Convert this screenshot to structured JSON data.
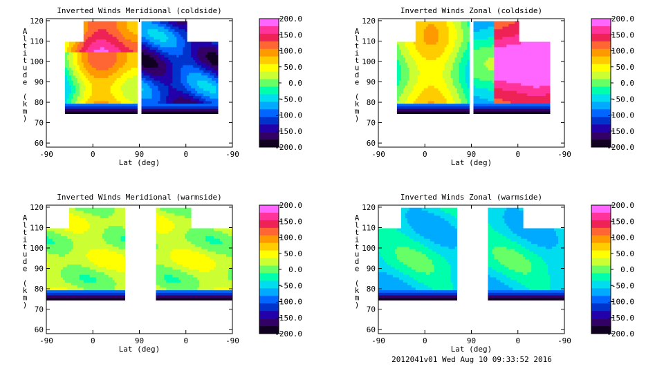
{
  "footer": "2012041v01 Wed Aug 10 09:33:52 2016",
  "colorbar": {
    "labels": [
      "200.0",
      "150.0",
      "100.0",
      "50.0",
      "0.0",
      "-50.0",
      "-100.0",
      "-150.0",
      "-200.0"
    ],
    "colors": [
      "#ff66ff",
      "#ff3399",
      "#ee2255",
      "#ff6633",
      "#ff9900",
      "#ffcc00",
      "#ffff00",
      "#ccff33",
      "#66ff66",
      "#00ffaa",
      "#00ddee",
      "#00aaff",
      "#0066ff",
      "#0033cc",
      "#2200aa",
      "#330066",
      "#110022"
    ]
  },
  "chart_data": [
    {
      "type": "heatmap",
      "title": "Inverted Winds Meridional (coldside)",
      "xlabel": "Lat (deg)",
      "ylabel": "Altitude (km)",
      "x_ticks": [
        "-90",
        "0",
        "90",
        "0",
        "-90"
      ],
      "y_ticks": [
        60,
        70,
        80,
        90,
        100,
        110,
        120
      ],
      "ylim": [
        58,
        121
      ],
      "zlim": [
        -200,
        200
      ]
    },
    {
      "type": "heatmap",
      "title": "Inverted Winds Zonal (coldside)",
      "xlabel": "Lat (deg)",
      "ylabel": "Altitude (km)",
      "x_ticks": [
        "-90",
        "0",
        "90",
        "0",
        "-90"
      ],
      "y_ticks": [
        60,
        70,
        80,
        90,
        100,
        110,
        120
      ],
      "ylim": [
        58,
        121
      ],
      "zlim": [
        -200,
        200
      ]
    },
    {
      "type": "heatmap",
      "title": "Inverted Winds Meridional (warmside)",
      "xlabel": "Lat (deg)",
      "ylabel": "Altitude (km)",
      "x_ticks": [
        "-90",
        "0",
        "90",
        "0",
        "-90"
      ],
      "y_ticks": [
        60,
        70,
        80,
        90,
        100,
        110,
        120
      ],
      "ylim": [
        58,
        121
      ],
      "zlim": [
        -200,
        200
      ]
    },
    {
      "type": "heatmap",
      "title": "Inverted Winds Zonal (warmside)",
      "xlabel": "Lat (deg)",
      "ylabel": "Altitude (km)",
      "x_ticks": [
        "-90",
        "0",
        "90",
        "0",
        "-90"
      ],
      "y_ticks": [
        60,
        70,
        80,
        90,
        100,
        110,
        120
      ],
      "ylim": [
        58,
        121
      ],
      "zlim": [
        -200,
        200
      ]
    }
  ]
}
